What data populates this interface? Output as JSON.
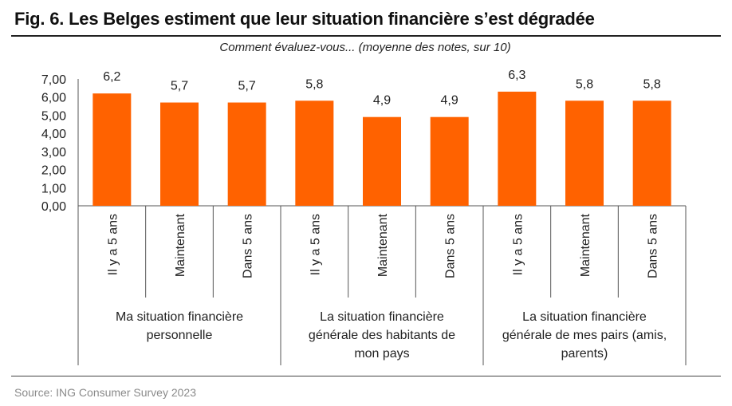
{
  "title": "Fig. 6. Les Belges estiment que leur situation financière s’est dégradée",
  "source": "Source: ING Consumer Survey 2023",
  "chart_data": {
    "type": "bar",
    "subtitle": "Comment évaluez-vous... (moyenne des notes, sur 10)",
    "ylim": [
      0,
      7
    ],
    "yticks": [
      "0,00",
      "1,00",
      "2,00",
      "3,00",
      "4,00",
      "5,00",
      "6,00",
      "7,00"
    ],
    "bar_color": "#FF6200",
    "groups": [
      {
        "label": [
          "Ma situation financière",
          "personnelle"
        ],
        "categories": [
          "Il y a 5 ans",
          "Maintenant",
          "Dans 5 ans"
        ],
        "values": [
          6.2,
          5.7,
          5.7
        ],
        "data_labels": [
          "6,2",
          "5,7",
          "5,7"
        ]
      },
      {
        "label": [
          "La situation financière",
          "générale des habitants de",
          "mon pays"
        ],
        "categories": [
          "Il y a 5 ans",
          "Maintenant",
          "Dans 5 ans"
        ],
        "values": [
          5.8,
          4.9,
          4.9
        ],
        "data_labels": [
          "5,8",
          "4,9",
          "4,9"
        ]
      },
      {
        "label": [
          "La situation financière",
          "générale de mes pairs (amis,",
          "parents)"
        ],
        "categories": [
          "Il y a 5 ans",
          "Maintenant",
          "Dans 5 ans"
        ],
        "values": [
          6.3,
          5.8,
          5.8
        ],
        "data_labels": [
          "6,3",
          "5,8",
          "5,8"
        ]
      }
    ],
    "grid": false,
    "legend": "none"
  }
}
